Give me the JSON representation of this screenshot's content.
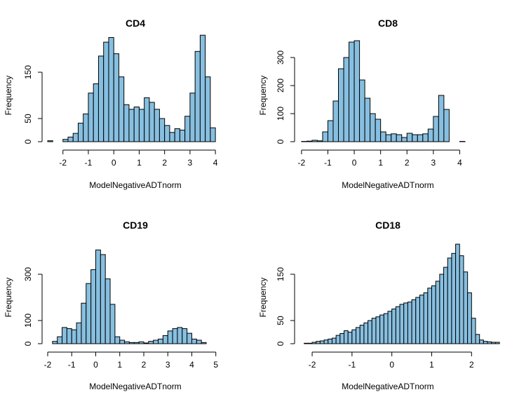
{
  "chart_data": [
    {
      "type": "bar",
      "title": "CD4",
      "xlabel": "ModelNegativeADTnorm",
      "ylabel": "Frequency",
      "bin_width": 0.2,
      "bin_start": -2.6,
      "values": [
        2,
        0,
        0,
        5,
        10,
        18,
        40,
        60,
        105,
        125,
        185,
        215,
        225,
        190,
        140,
        80,
        70,
        75,
        70,
        95,
        85,
        70,
        50,
        35,
        20,
        28,
        25,
        55,
        105,
        195,
        230,
        140,
        30
      ],
      "xticks": [
        -2,
        -1,
        0,
        1,
        2,
        3,
        4
      ],
      "yticks": [
        0,
        50,
        150
      ],
      "xlim": [
        -2.6,
        4.3
      ],
      "ylim": [
        0,
        200
      ],
      "bar_color": "#87bfe0",
      "grid": false
    },
    {
      "type": "bar",
      "title": "CD8",
      "xlabel": "ModelNegativeADTnorm",
      "ylabel": "Frequency",
      "bin_width": 0.2,
      "bin_start": -2.0,
      "values": [
        1,
        2,
        5,
        3,
        35,
        75,
        145,
        260,
        300,
        355,
        360,
        220,
        155,
        100,
        80,
        35,
        25,
        28,
        25,
        15,
        30,
        25,
        25,
        28,
        45,
        90,
        165,
        115,
        0,
        0,
        1
      ],
      "xticks": [
        -2,
        -1,
        0,
        1,
        2,
        3,
        4
      ],
      "yticks": [
        0,
        100,
        200,
        300
      ],
      "xlim": [
        -2.05,
        4.6
      ],
      "ylim": [
        0,
        330
      ],
      "bar_color": "#87bfe0",
      "grid": false
    },
    {
      "type": "bar",
      "title": "CD19",
      "xlabel": "ModelNegativeADTnorm",
      "ylabel": "Frequency",
      "bin_width": 0.2,
      "bin_start": -1.8,
      "values": [
        10,
        30,
        70,
        65,
        60,
        90,
        175,
        260,
        320,
        405,
        385,
        280,
        170,
        30,
        15,
        8,
        5,
        5,
        8,
        3,
        10,
        15,
        20,
        35,
        55,
        65,
        70,
        65,
        45,
        20,
        15,
        5
      ],
      "xticks": [
        -2,
        -1,
        0,
        1,
        2,
        3,
        4,
        5
      ],
      "yticks": [
        0,
        100,
        300
      ],
      "xlim": [
        -2.0,
        5.3
      ],
      "ylim": [
        0,
        400
      ],
      "bar_color": "#87bfe0",
      "grid": false
    },
    {
      "type": "bar",
      "title": "CD18",
      "xlabel": "ModelNegativeADTnorm",
      "ylabel": "Frequency",
      "bin_width": 0.1,
      "bin_start": -2.2,
      "values": [
        1,
        1,
        3,
        5,
        6,
        8,
        10,
        12,
        18,
        22,
        28,
        25,
        30,
        35,
        40,
        45,
        50,
        55,
        58,
        62,
        65,
        70,
        75,
        80,
        85,
        88,
        90,
        95,
        100,
        105,
        110,
        120,
        125,
        135,
        150,
        165,
        185,
        195,
        215,
        190,
        155,
        110,
        55,
        20,
        8,
        5,
        4,
        3,
        3
      ],
      "xticks": [
        -2,
        -1,
        0,
        1,
        2
      ],
      "yticks": [
        0,
        50,
        150
      ],
      "xlim": [
        -2.3,
        2.1
      ],
      "ylim": [
        0,
        200
      ],
      "bar_color": "#87bfe0",
      "grid": false
    }
  ]
}
